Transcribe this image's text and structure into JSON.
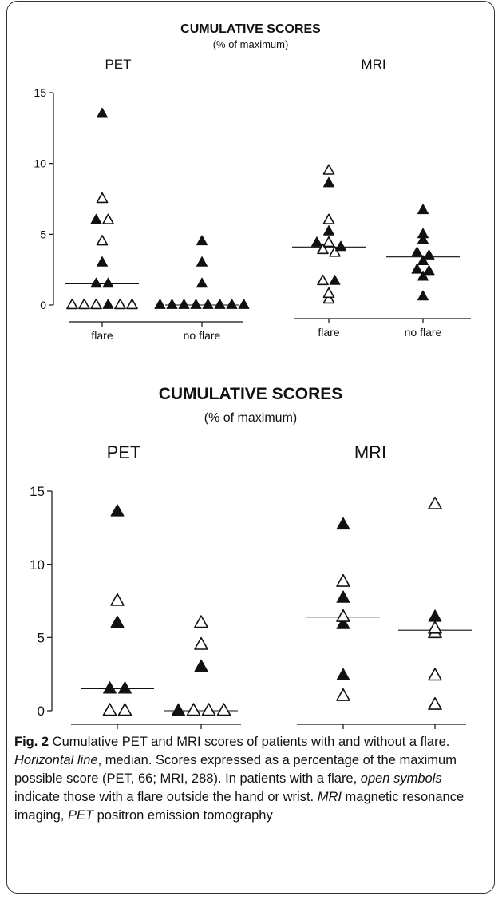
{
  "chart_data": [
    {
      "type": "scatter",
      "title": "CUMULATIVE SCORES",
      "subtitle": "(% of maximum)",
      "panels": [
        {
          "name": "PET",
          "ylim": [
            0,
            15
          ],
          "yticks": [
            0,
            5,
            10,
            15
          ],
          "groups": [
            {
              "label": "flare",
              "median": 1.5,
              "points": [
                {
                  "y": 13.5,
                  "symbol": "filled"
                },
                {
                  "y": 7.5,
                  "symbol": "open"
                },
                {
                  "y": 6.0,
                  "symbol": "filled"
                },
                {
                  "y": 6.0,
                  "symbol": "open"
                },
                {
                  "y": 4.5,
                  "symbol": "open"
                },
                {
                  "y": 3.0,
                  "symbol": "filled"
                },
                {
                  "y": 1.5,
                  "symbol": "filled"
                },
                {
                  "y": 1.5,
                  "symbol": "filled"
                },
                {
                  "y": 0,
                  "symbol": "open"
                },
                {
                  "y": 0,
                  "symbol": "open"
                },
                {
                  "y": 0,
                  "symbol": "open"
                },
                {
                  "y": 0,
                  "symbol": "filled"
                },
                {
                  "y": 0,
                  "symbol": "open"
                },
                {
                  "y": 0,
                  "symbol": "open"
                }
              ]
            },
            {
              "label": "no flare",
              "median": 0,
              "points": [
                {
                  "y": 4.5,
                  "symbol": "filled"
                },
                {
                  "y": 3.0,
                  "symbol": "filled"
                },
                {
                  "y": 1.5,
                  "symbol": "filled"
                },
                {
                  "y": 0,
                  "symbol": "filled"
                },
                {
                  "y": 0,
                  "symbol": "filled"
                },
                {
                  "y": 0,
                  "symbol": "filled"
                },
                {
                  "y": 0,
                  "symbol": "filled"
                },
                {
                  "y": 0,
                  "symbol": "filled"
                },
                {
                  "y": 0,
                  "symbol": "filled"
                },
                {
                  "y": 0,
                  "symbol": "filled"
                },
                {
                  "y": 0,
                  "symbol": "filled"
                }
              ]
            }
          ]
        },
        {
          "name": "MRI",
          "ylim": [
            0,
            15
          ],
          "groups": [
            {
              "label": "flare",
              "median": 4.1,
              "points": [
                {
                  "y": 9.5,
                  "symbol": "open"
                },
                {
                  "y": 8.6,
                  "symbol": "filled"
                },
                {
                  "y": 6.0,
                  "symbol": "open"
                },
                {
                  "y": 5.2,
                  "symbol": "filled"
                },
                {
                  "y": 4.4,
                  "symbol": "filled"
                },
                {
                  "y": 4.4,
                  "symbol": "open"
                },
                {
                  "y": 4.1,
                  "symbol": "filled"
                },
                {
                  "y": 3.9,
                  "symbol": "open"
                },
                {
                  "y": 3.7,
                  "symbol": "open"
                },
                {
                  "y": 1.7,
                  "symbol": "open"
                },
                {
                  "y": 1.7,
                  "symbol": "filled"
                },
                {
                  "y": 0.8,
                  "symbol": "open"
                },
                {
                  "y": 0.4,
                  "symbol": "open"
                }
              ]
            },
            {
              "label": "no flare",
              "median": 3.4,
              "points": [
                {
                  "y": 6.7,
                  "symbol": "filled"
                },
                {
                  "y": 5.0,
                  "symbol": "filled"
                },
                {
                  "y": 4.6,
                  "symbol": "filled"
                },
                {
                  "y": 3.7,
                  "symbol": "filled"
                },
                {
                  "y": 3.5,
                  "symbol": "filled"
                },
                {
                  "y": 3.1,
                  "symbol": "filled"
                },
                {
                  "y": 2.5,
                  "symbol": "filled"
                },
                {
                  "y": 2.4,
                  "symbol": "filled"
                },
                {
                  "y": 2.0,
                  "symbol": "filled"
                },
                {
                  "y": 0.6,
                  "symbol": "filled"
                }
              ]
            }
          ]
        }
      ]
    },
    {
      "type": "scatter",
      "title": "CUMULATIVE SCORES",
      "subtitle": "(% of maximum)",
      "panels": [
        {
          "name": "PET",
          "ylim": [
            0,
            15
          ],
          "yticks": [
            0,
            5,
            10,
            15
          ],
          "groups": [
            {
              "label": "",
              "median": 1.5,
              "points": [
                {
                  "y": 13.6,
                  "symbol": "filled"
                },
                {
                  "y": 7.5,
                  "symbol": "open"
                },
                {
                  "y": 6.0,
                  "symbol": "filled"
                },
                {
                  "y": 1.5,
                  "symbol": "filled"
                },
                {
                  "y": 1.5,
                  "symbol": "filled"
                },
                {
                  "y": 0,
                  "symbol": "open"
                },
                {
                  "y": 0,
                  "symbol": "open"
                }
              ]
            },
            {
              "label": "",
              "median": 0,
              "points": [
                {
                  "y": 6.0,
                  "symbol": "open"
                },
                {
                  "y": 4.5,
                  "symbol": "open"
                },
                {
                  "y": 3.0,
                  "symbol": "filled"
                },
                {
                  "y": 0,
                  "symbol": "filled"
                },
                {
                  "y": 0,
                  "symbol": "open"
                },
                {
                  "y": 0,
                  "symbol": "open"
                },
                {
                  "y": 0,
                  "symbol": "open"
                }
              ]
            }
          ]
        },
        {
          "name": "MRI",
          "ylim": [
            0,
            15
          ],
          "groups": [
            {
              "label": "",
              "median": 6.4,
              "points": [
                {
                  "y": 12.7,
                  "symbol": "filled"
                },
                {
                  "y": 8.8,
                  "symbol": "open"
                },
                {
                  "y": 7.7,
                  "symbol": "filled"
                },
                {
                  "y": 6.4,
                  "symbol": "open"
                },
                {
                  "y": 5.9,
                  "symbol": "filled"
                },
                {
                  "y": 2.4,
                  "symbol": "filled"
                },
                {
                  "y": 1.0,
                  "symbol": "open"
                }
              ]
            },
            {
              "label": "",
              "median": 5.5,
              "points": [
                {
                  "y": 14.1,
                  "symbol": "open"
                },
                {
                  "y": 6.4,
                  "symbol": "filled"
                },
                {
                  "y": 5.6,
                  "symbol": "open"
                },
                {
                  "y": 5.3,
                  "symbol": "open"
                },
                {
                  "y": 2.4,
                  "symbol": "open"
                },
                {
                  "y": 0.4,
                  "symbol": "open"
                }
              ]
            }
          ]
        }
      ]
    }
  ],
  "caption": {
    "label": "Fig. 2",
    "segments": [
      {
        "text": " Cumulative PET and MRI scores of patients with and without a flare. ",
        "italic": false
      },
      {
        "text": "Horizontal line",
        "italic": true
      },
      {
        "text": ", median. Scores expressed as a percentage of the maximum possible score (PET, 66; MRI, 288). In patients with a flare, ",
        "italic": false
      },
      {
        "text": "open symbols",
        "italic": true
      },
      {
        "text": " indicate those with a flare outside the hand or wrist. ",
        "italic": false
      },
      {
        "text": "MRI",
        "italic": true
      },
      {
        "text": " magnetic resonance imaging, ",
        "italic": false
      },
      {
        "text": "PET",
        "italic": true
      },
      {
        "text": " positron emission tomography",
        "italic": false
      }
    ]
  }
}
